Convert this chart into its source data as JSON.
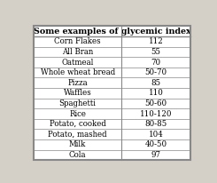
{
  "title": "Some examples of glycemic index",
  "rows": [
    [
      "Corn Flakes",
      "112"
    ],
    [
      "All Bran",
      "55"
    ],
    [
      "Oatmeal",
      "70"
    ],
    [
      "Whole wheat bread",
      "50-70"
    ],
    [
      "Pizza",
      "85"
    ],
    [
      "Waffles",
      "110"
    ],
    [
      "Spaghetti",
      "50-60"
    ],
    [
      "Rice",
      "110-120"
    ],
    [
      "Potato, cooked",
      "80-85"
    ],
    [
      "Potato, mashed",
      "104"
    ],
    [
      "Milk",
      "40-50"
    ],
    [
      "Cola",
      "97"
    ]
  ],
  "col_split": 0.56,
  "outer_bg": "#d4d0c8",
  "table_bg": "#ffffff",
  "border_color": "#888888",
  "text_color": "#000000",
  "title_fontsize": 6.8,
  "cell_fontsize": 6.2,
  "font_family": "serif"
}
